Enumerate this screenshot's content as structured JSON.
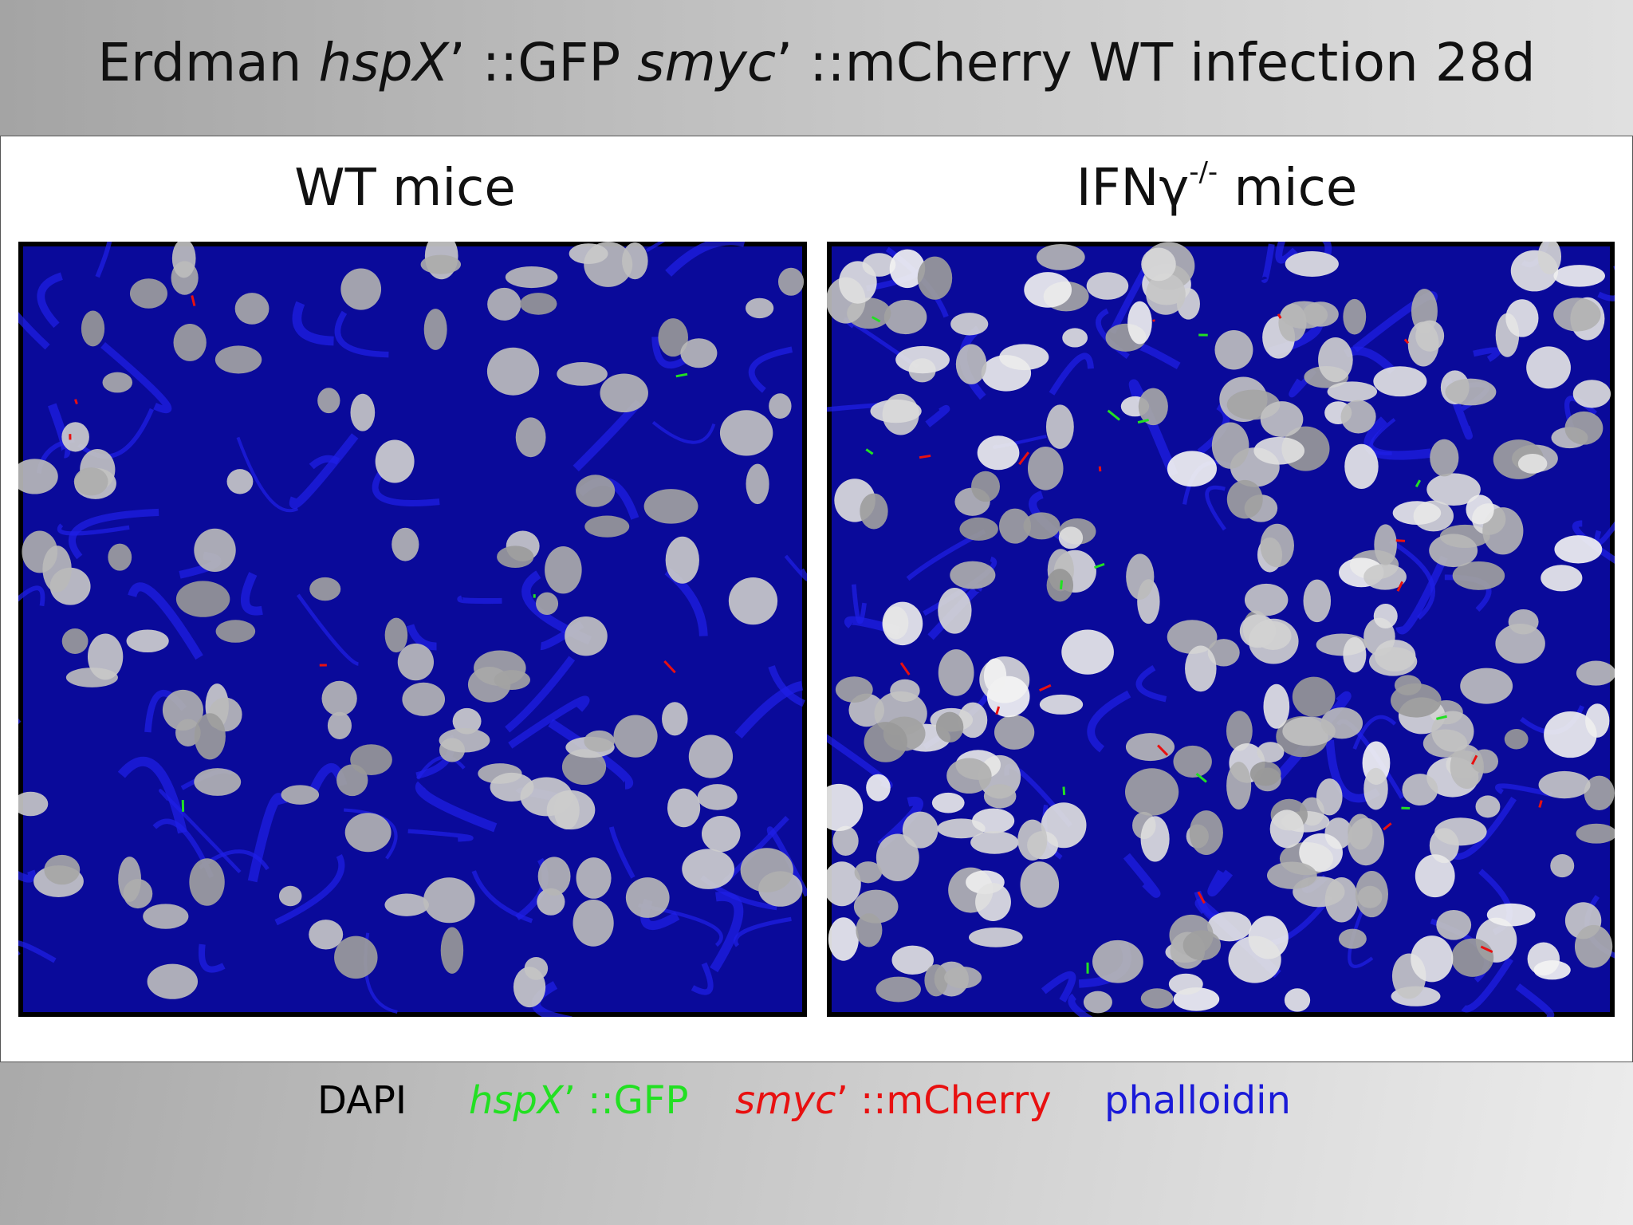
{
  "header": {
    "title": [
      {
        "text": "Erdman ",
        "italic": false
      },
      {
        "text": "hspX",
        "italic": true
      },
      {
        "text": "’",
        "italic": false
      },
      {
        "text": " ::GFP ",
        "italic": false
      },
      {
        "text": "smyc",
        "italic": true
      },
      {
        "text": "’",
        "italic": false
      },
      {
        "text": " ::mCherry WT infection 28d",
        "italic": false
      }
    ]
  },
  "panels": [
    {
      "label": [
        {
          "text": "WT mice",
          "sup": false
        }
      ]
    },
    {
      "label": [
        {
          "text": "IFNγ",
          "sup": false
        },
        {
          "text": "-/-",
          "sup": true
        },
        {
          "text": " mice",
          "sup": false
        }
      ]
    }
  ],
  "legend": [
    {
      "color": "#000000",
      "parts": [
        {
          "text": "DAPI",
          "italic": false
        }
      ]
    },
    {
      "color": "#22e022",
      "parts": [
        {
          "text": "hspX",
          "italic": true
        },
        {
          "text": "’",
          "italic": false
        },
        {
          "text": " ::GFP",
          "italic": false
        }
      ]
    },
    {
      "color": "#e81010",
      "parts": [
        {
          "text": "smyc",
          "italic": true
        },
        {
          "text": "’",
          "italic": false
        },
        {
          "text": " ::mCherry",
          "italic": false
        }
      ]
    },
    {
      "color": "#1a1ad8",
      "parts": [
        {
          "text": "phalloidin",
          "italic": false
        }
      ]
    }
  ]
}
